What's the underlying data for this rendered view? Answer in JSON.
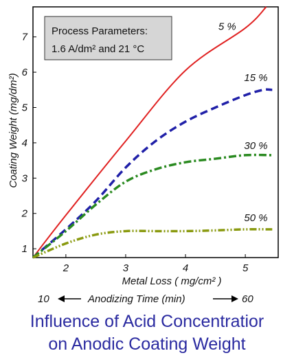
{
  "caption": {
    "line1": "Influence of Acid Concentratior",
    "line2": "on Anodic Coating Weight"
  },
  "chart_data": {
    "type": "line",
    "xlabel": "Metal Loss ( mg/cm² )",
    "ylabel": "Coating Weight (mg/dm²)",
    "xlim": [
      1.45,
      5.55
    ],
    "ylim": [
      0.75,
      7.85
    ],
    "x_ticks": [
      "2",
      "3",
      "4",
      "5"
    ],
    "y_ticks": [
      "1",
      "2",
      "3",
      "4",
      "5",
      "6",
      "7"
    ],
    "grid": false,
    "annotation_box": {
      "line1": "Process Parameters:",
      "line2": "1.6 A/dm²  and 21 °C"
    },
    "secondary_axis": {
      "start": "10",
      "label": "Anodizing Time (min)",
      "end": "60"
    },
    "series": [
      {
        "name": "5 %",
        "color": "#e02020",
        "style": "solid",
        "x": [
          1.45,
          2.0,
          3.0,
          4.0,
          5.0,
          5.35
        ],
        "y": [
          0.75,
          1.95,
          4.05,
          6.05,
          7.25,
          7.85
        ]
      },
      {
        "name": "15 %",
        "color": "#2020a8",
        "style": "dashed",
        "x": [
          1.45,
          2.0,
          2.5,
          3.0,
          3.5,
          4.0,
          4.5,
          5.0,
          5.3,
          5.45
        ],
        "y": [
          0.75,
          1.55,
          2.35,
          3.3,
          4.05,
          4.6,
          5.0,
          5.35,
          5.5,
          5.5
        ]
      },
      {
        "name": "30 %",
        "color": "#2a8a20",
        "style": "dashdot",
        "x": [
          1.45,
          2.0,
          2.5,
          3.0,
          3.5,
          4.0,
          4.5,
          5.0,
          5.45
        ],
        "y": [
          0.75,
          1.5,
          2.25,
          2.9,
          3.25,
          3.45,
          3.55,
          3.65,
          3.65
        ]
      },
      {
        "name": "50 %",
        "color": "#8a9a10",
        "style": "dashdotdot",
        "x": [
          1.45,
          2.0,
          2.5,
          3.0,
          3.5,
          4.0,
          4.5,
          5.0,
          5.45
        ],
        "y": [
          0.75,
          1.15,
          1.4,
          1.5,
          1.5,
          1.5,
          1.52,
          1.55,
          1.55
        ]
      }
    ]
  }
}
